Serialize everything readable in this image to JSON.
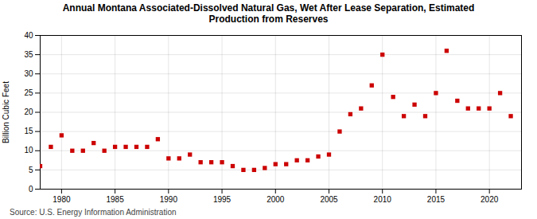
{
  "chart_data": {
    "type": "scatter",
    "title": "Annual Montana Associated-Dissolved Natural Gas, Wet After Lease Separation, Estimated\nProduction from Reserves",
    "ylabel": "Billion Cubic Feet",
    "source": "Source: U.S. Energy Information Administration",
    "x": [
      1978,
      1979,
      1980,
      1981,
      1982,
      1983,
      1984,
      1985,
      1986,
      1987,
      1988,
      1989,
      1990,
      1991,
      1992,
      1993,
      1994,
      1995,
      1996,
      1997,
      1998,
      1999,
      2000,
      2001,
      2002,
      2003,
      2004,
      2005,
      2006,
      2007,
      2008,
      2009,
      2010,
      2011,
      2012,
      2013,
      2014,
      2015,
      2016,
      2017,
      2018,
      2019,
      2020,
      2021,
      2022
    ],
    "values": [
      6.0,
      11.0,
      14.0,
      10.0,
      10.0,
      12.0,
      10.0,
      11.0,
      11.0,
      11.0,
      11.0,
      13.0,
      8.0,
      8.0,
      9.0,
      7.0,
      7.0,
      7.0,
      6.0,
      5.0,
      5.0,
      5.5,
      6.5,
      6.5,
      7.5,
      7.5,
      8.5,
      9.0,
      15.0,
      19.5,
      21.0,
      27.0,
      35.0,
      24.0,
      19.0,
      22.0,
      19.0,
      25.0,
      36.0,
      23.0,
      21.0,
      21.0,
      21.0,
      25.0,
      19.0
    ],
    "color": "#cc0000",
    "marker": "square",
    "xlim": [
      1978,
      2023
    ],
    "ylim": [
      0,
      40
    ],
    "xticks": [
      1980,
      1985,
      1990,
      1995,
      2000,
      2005,
      2010,
      2015,
      2020
    ],
    "yticks": [
      0,
      5,
      10,
      15,
      20,
      25,
      30,
      35,
      40
    ],
    "grid": true
  }
}
